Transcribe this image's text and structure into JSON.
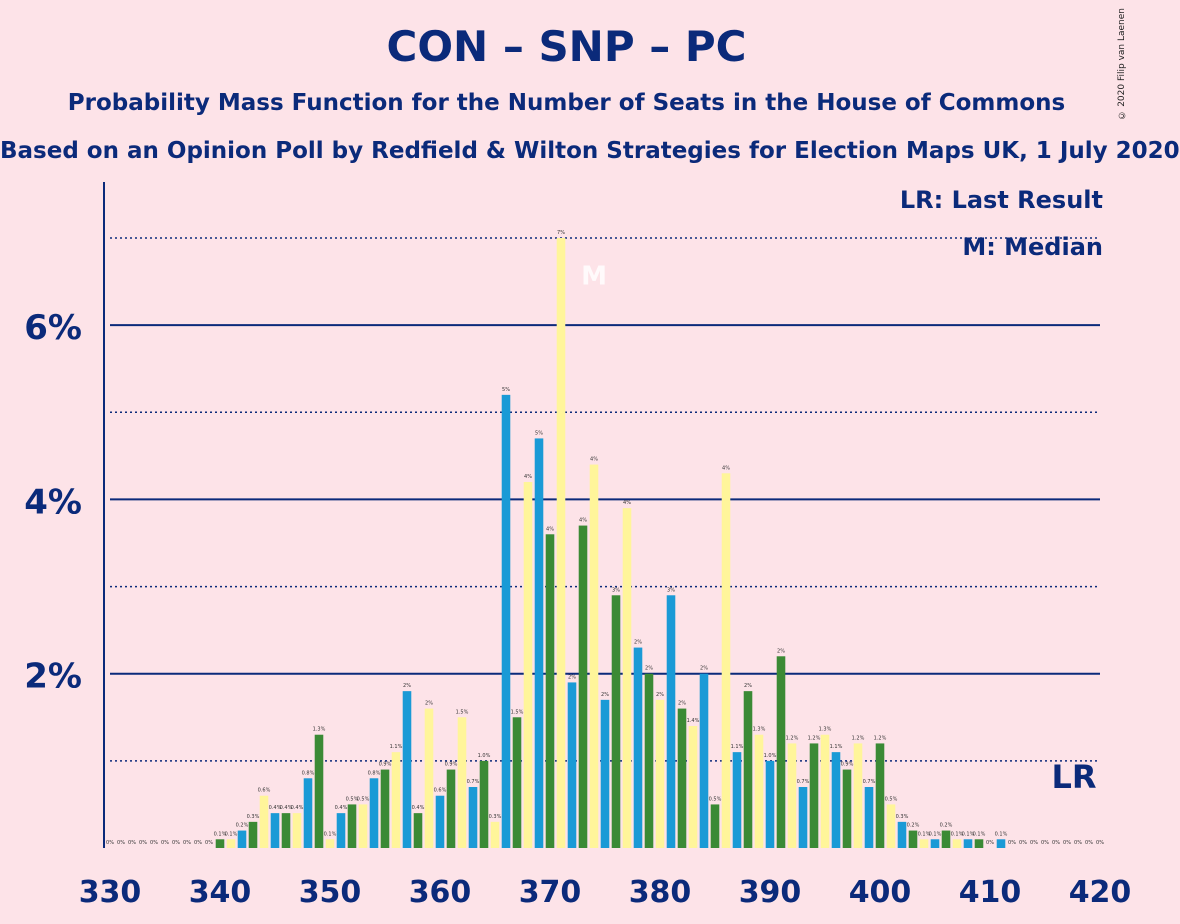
{
  "title": "CON – SNP – PC",
  "subtitle": "Probability Mass Function for the Number of Seats in the House of Commons",
  "subtitle2": "Based on an Opinion Poll by Redfield & Wilton Strategies for Election Maps UK, 1 July 2020",
  "copyright": "© 2020 Filip van Laenen",
  "legend": {
    "lr": "LR: Last Result",
    "m": "M: Median"
  },
  "colors": {
    "blue": "#1a9ad6",
    "green": "#3b8a35",
    "yellow": "#fff59a",
    "axis": "#0b2a7a",
    "background": "#fde3e8"
  },
  "chart_data": {
    "type": "bar",
    "x": [
      330,
      331,
      332,
      333,
      334,
      335,
      336,
      337,
      338,
      339,
      340,
      341,
      342,
      343,
      344,
      345,
      346,
      347,
      348,
      349,
      350,
      351,
      352,
      353,
      354,
      355,
      356,
      357,
      358,
      359,
      360,
      361,
      362,
      363,
      364,
      365,
      366,
      367,
      368,
      369,
      370,
      371,
      372,
      373,
      374,
      375,
      376,
      377,
      378,
      379,
      380,
      381,
      382,
      383,
      384,
      385,
      386,
      387,
      388,
      389,
      390,
      391,
      392,
      393,
      394,
      395,
      396,
      397,
      398,
      399,
      400,
      401,
      402,
      403,
      404,
      405,
      406,
      407,
      408,
      409,
      410,
      411,
      412,
      413,
      414,
      415,
      416,
      417,
      418,
      419,
      420
    ],
    "values": [
      0,
      0,
      0,
      0,
      0,
      0,
      0,
      0,
      0,
      0,
      0.1,
      0.1,
      0.2,
      0.3,
      0.6,
      0.4,
      0.4,
      0.4,
      0.8,
      1.3,
      0.1,
      0.4,
      0.5,
      0.5,
      0.8,
      0.9,
      1.1,
      1.8,
      0.4,
      1.6,
      0.6,
      0.9,
      1.5,
      0.7,
      1.0,
      0.3,
      5.2,
      1.5,
      4.2,
      4.7,
      3.6,
      7.0,
      1.9,
      3.7,
      4.4,
      1.7,
      2.9,
      3.9,
      2.3,
      2.0,
      1.7,
      2.9,
      1.6,
      1.4,
      2.0,
      0.5,
      4.3,
      1.1,
      1.8,
      1.3,
      1.0,
      2.2,
      1.2,
      0.7,
      1.2,
      1.3,
      1.1,
      0.9,
      1.2,
      0.7,
      1.2,
      0.5,
      0.3,
      0.2,
      0.1,
      0.1,
      0.2,
      0.1,
      0.1,
      0.1,
      0,
      0.1,
      0,
      0,
      0,
      0,
      0,
      0,
      0,
      0,
      0
    ],
    "value_labels": [
      "0%",
      "0%",
      "0%",
      "0%",
      "0%",
      "0%",
      "0%",
      "0%",
      "0%",
      "0%",
      "0.1%",
      "0.1%",
      "0.2%",
      "0.3%",
      "0.6%",
      "0.4%",
      "0.4%",
      "0.4%",
      "0.8%",
      "1.3%",
      "0.1%",
      "0.4%",
      "0.5%",
      "0.5%",
      "0.8%",
      "0.9%",
      "1.1%",
      "2%",
      "0.4%",
      "2%",
      "0.6%",
      "0.9%",
      "1.5%",
      "0.7%",
      "1.0%",
      "0.3%",
      "5%",
      "1.5%",
      "4%",
      "5%",
      "4%",
      "7%",
      "2%",
      "4%",
      "4%",
      "2%",
      "3%",
      "4%",
      "2%",
      "2%",
      "2%",
      "3%",
      "2%",
      "1.4%",
      "2%",
      "0.5%",
      "4%",
      "1.1%",
      "2%",
      "1.3%",
      "1.0%",
      "2%",
      "1.2%",
      "0.7%",
      "1.2%",
      "1.3%",
      "1.1%",
      "0.9%",
      "1.2%",
      "0.7%",
      "1.2%",
      "0.5%",
      "0.3%",
      "0.2%",
      "0.1%",
      "0.1%",
      "0.2%",
      "0.1%",
      "0.1%",
      "0.1%",
      "0%",
      "0.1%",
      "0%",
      "0%",
      "0%",
      "0%",
      "0%",
      "0%",
      "0%",
      "0%",
      "0%"
    ],
    "color_cycle": [
      "blue",
      "green",
      "yellow"
    ],
    "xlim": [
      330,
      420
    ],
    "ylim": [
      0,
      7.5
    ],
    "yticks": [
      2,
      4,
      6
    ],
    "ytick_labels": [
      "2%",
      "4%",
      "6%"
    ],
    "minor_yticks": [
      1,
      3,
      5,
      7
    ],
    "xticks": [
      330,
      340,
      350,
      360,
      370,
      380,
      390,
      400,
      410,
      420
    ],
    "xtick_labels": [
      "330",
      "340",
      "350",
      "360",
      "370",
      "380",
      "390",
      "400",
      "410",
      "420"
    ],
    "median_seat": 374,
    "median_mark": "M",
    "last_result_seat": 418,
    "last_result_mark": "LR",
    "legend_position": "top-right",
    "grid": true
  }
}
